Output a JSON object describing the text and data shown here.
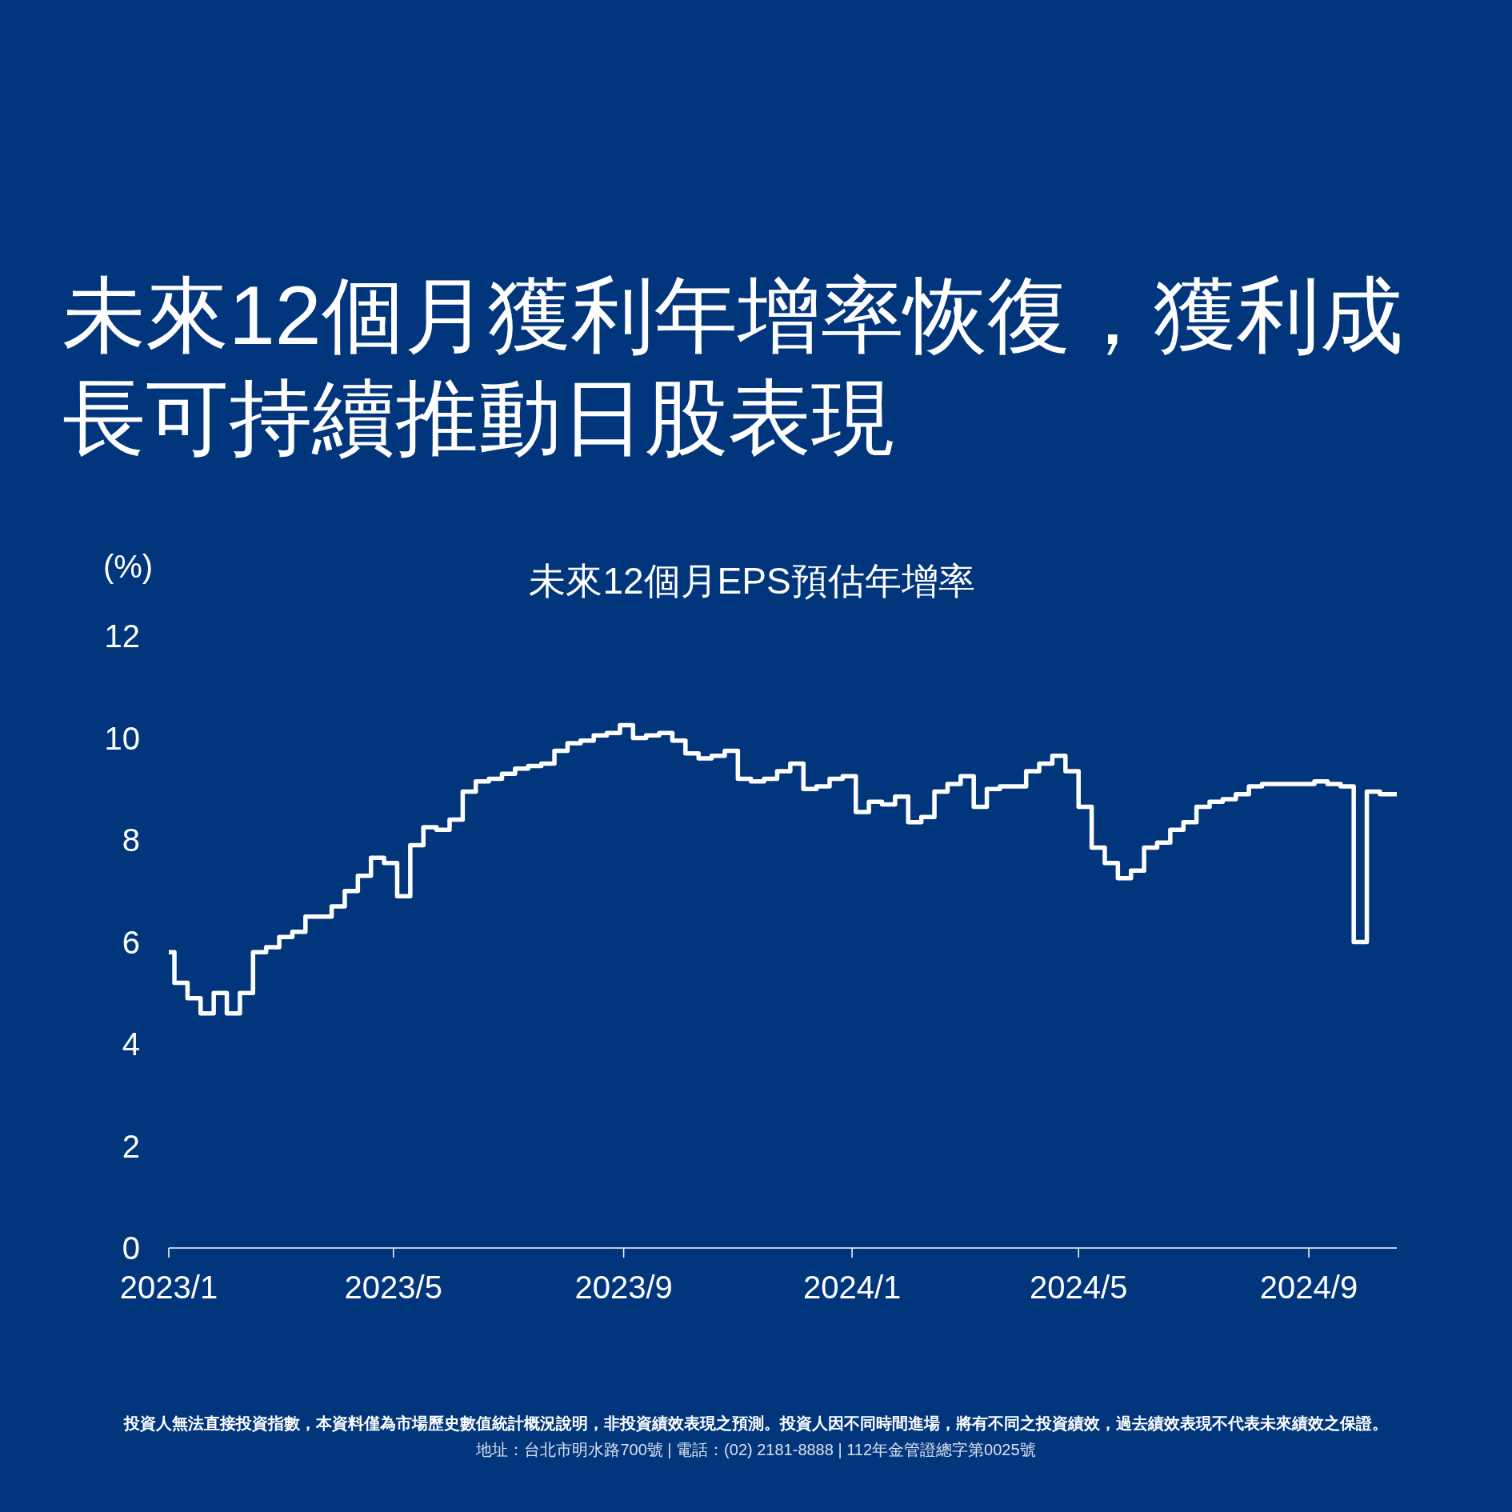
{
  "chart_data": {
    "type": "step",
    "title": "未來12個月獲利年增率恢復，獲利成長可持續推動日股表現",
    "subtitle": "未來12個月EPS預估年增率",
    "ylabel": "(%)",
    "annotations": [
      "投資人無法直接投資指數，本資料僅為市場歷史數值統計概況說明，非投資績效表現之預測。投資人因不同時間進場，將有不同之投資績效，過去績效表現不代表未來績效之保證。",
      "地址：台北市明水路700號 | 電話：(02) 2181-8888 | 112年金管證總字第0025號"
    ],
    "xlim": [
      "2023-01-01",
      "2024-10-18"
    ],
    "xticks": [
      {
        "value": "2023-01-01",
        "label": "2023/1"
      },
      {
        "value": "2023-05-01",
        "label": "2023/5"
      },
      {
        "value": "2023-09-01",
        "label": "2023/9"
      },
      {
        "value": "2024-01-01",
        "label": "2024/1"
      },
      {
        "value": "2024-05-01",
        "label": "2024/5"
      },
      {
        "value": "2024-09-01",
        "label": "2024/9"
      }
    ],
    "ylim": [
      0,
      12
    ],
    "yticks": [
      0,
      2,
      4,
      6,
      8,
      10,
      12
    ],
    "grid": false,
    "series": [
      {
        "color": "#ffffff",
        "x": [
          "2023-01-01",
          "2023-01-04",
          "2023-01-11",
          "2023-01-18",
          "2023-01-25",
          "2023-02-01",
          "2023-02-08",
          "2023-02-15",
          "2023-02-22",
          "2023-03-01",
          "2023-03-08",
          "2023-03-15",
          "2023-03-22",
          "2023-03-29",
          "2023-04-05",
          "2023-04-12",
          "2023-04-19",
          "2023-04-26",
          "2023-05-03",
          "2023-05-10",
          "2023-05-17",
          "2023-05-24",
          "2023-05-31",
          "2023-06-07",
          "2023-06-14",
          "2023-06-21",
          "2023-06-28",
          "2023-07-05",
          "2023-07-12",
          "2023-07-19",
          "2023-07-26",
          "2023-08-02",
          "2023-08-09",
          "2023-08-16",
          "2023-08-23",
          "2023-08-30",
          "2023-09-06",
          "2023-09-13",
          "2023-09-20",
          "2023-09-27",
          "2023-10-04",
          "2023-10-11",
          "2023-10-18",
          "2023-10-25",
          "2023-11-01",
          "2023-11-08",
          "2023-11-15",
          "2023-11-22",
          "2023-11-29",
          "2023-12-06",
          "2023-12-13",
          "2023-12-20",
          "2023-12-27",
          "2024-01-03",
          "2024-01-10",
          "2024-01-17",
          "2024-01-24",
          "2024-01-31",
          "2024-02-07",
          "2024-02-14",
          "2024-02-21",
          "2024-02-28",
          "2024-03-06",
          "2024-03-13",
          "2024-03-20",
          "2024-03-27",
          "2024-04-03",
          "2024-04-10",
          "2024-04-17",
          "2024-04-24",
          "2024-05-01",
          "2024-05-08",
          "2024-05-15",
          "2024-05-22",
          "2024-05-29",
          "2024-06-05",
          "2024-06-12",
          "2024-06-19",
          "2024-06-26",
          "2024-07-03",
          "2024-07-10",
          "2024-07-17",
          "2024-07-24",
          "2024-07-31",
          "2024-08-07",
          "2024-08-14",
          "2024-08-21",
          "2024-08-28",
          "2024-09-04",
          "2024-09-11",
          "2024-09-18",
          "2024-09-25",
          "2024-10-02",
          "2024-10-09",
          "2024-10-18"
        ],
        "values": [
          5.8,
          5.2,
          4.9,
          4.6,
          5.0,
          4.6,
          5.0,
          5.8,
          5.9,
          6.1,
          6.2,
          6.5,
          6.5,
          6.7,
          7.0,
          7.3,
          7.65,
          7.55,
          6.9,
          7.9,
          8.25,
          8.2,
          8.4,
          8.95,
          9.15,
          9.2,
          9.3,
          9.4,
          9.45,
          9.5,
          9.75,
          9.9,
          9.95,
          10.05,
          10.1,
          10.25,
          10.0,
          10.05,
          10.1,
          9.95,
          9.7,
          9.6,
          9.65,
          9.75,
          9.2,
          9.15,
          9.2,
          9.35,
          9.5,
          9.0,
          9.05,
          9.2,
          9.25,
          8.55,
          8.75,
          8.7,
          8.85,
          8.35,
          8.45,
          8.95,
          9.1,
          9.25,
          8.65,
          9.0,
          9.05,
          9.05,
          9.35,
          9.5,
          9.65,
          9.35,
          8.65,
          7.85,
          7.55,
          7.25,
          7.4,
          7.85,
          7.95,
          8.2,
          8.35,
          8.65,
          8.75,
          8.8,
          8.9,
          9.05,
          9.1,
          9.1,
          9.1,
          9.1,
          9.15,
          9.1,
          9.05,
          6.0,
          8.95,
          8.9,
          8.9
        ]
      }
    ]
  }
}
